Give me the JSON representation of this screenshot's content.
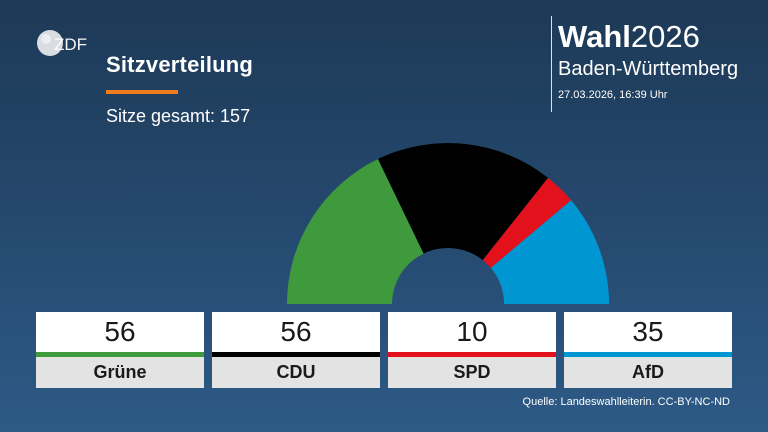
{
  "header": {
    "logo_text": "ZDF",
    "title": "Sitzverteilung",
    "subtitle": "Sitze gesamt: 157"
  },
  "brand": {
    "wahl": "Wahl",
    "year": "2026",
    "region": "Baden-Württemberg",
    "timestamp": "27.03.2026, 16:39 Uhr"
  },
  "colors": {
    "accent": "#f07c1e",
    "background": "#24476b"
  },
  "chart_data": {
    "type": "pie",
    "subtype": "half-donut (seat distribution)",
    "title": "Sitzverteilung",
    "total": 157,
    "categories": [
      "Grüne",
      "CDU",
      "SPD",
      "AfD"
    ],
    "values": [
      56,
      56,
      10,
      35
    ],
    "colors": [
      "#3f9a3d",
      "#000000",
      "#e3111b",
      "#0096d1"
    ]
  },
  "footer": {
    "source": "Quelle: Landeswahlleiterin. CC-BY-NC-ND"
  }
}
